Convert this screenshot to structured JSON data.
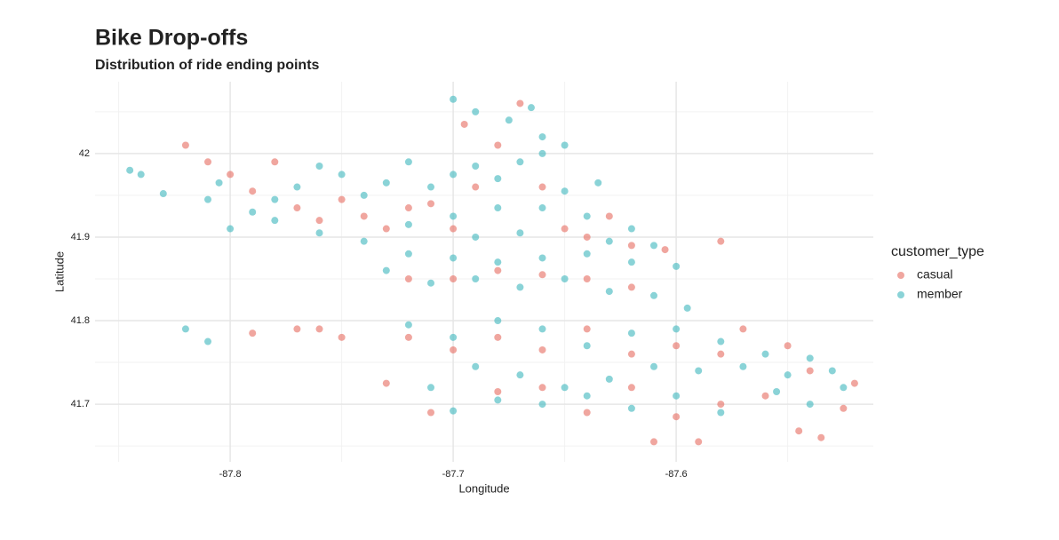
{
  "chart_data": {
    "type": "scatter",
    "title": "Bike Drop-offs",
    "subtitle": "Distribution of ride ending points",
    "x_label": "Longitude",
    "y_label": "Latitude",
    "legend_title": "customer_type",
    "legend_position": "right",
    "grid": true,
    "xlim": [
      -87.8606,
      -87.5116
    ],
    "ylim": [
      41.631,
      42.086
    ],
    "xticks": [
      -87.8,
      -87.7,
      -87.6
    ],
    "yticks": [
      41.7,
      41.8,
      41.9,
      42.0
    ],
    "xminor": [
      -87.85,
      -87.75,
      -87.65,
      -87.55
    ],
    "yminor": [
      41.65,
      41.75,
      41.85,
      41.95,
      42.05
    ],
    "series": [
      {
        "name": "casual",
        "color": "#e8766c",
        "x": [
          -87.82,
          -87.81,
          -87.8,
          -87.79,
          -87.78,
          -87.77,
          -87.76,
          -87.75,
          -87.74,
          -87.73,
          -87.72,
          -87.71,
          -87.7,
          -87.69,
          -87.68,
          -87.67,
          -87.695,
          -87.66,
          -87.65,
          -87.64,
          -87.63,
          -87.62,
          -87.605,
          -87.58,
          -87.7,
          -87.72,
          -87.68,
          -87.66,
          -87.64,
          -87.62,
          -87.79,
          -87.77,
          -87.75,
          -87.76,
          -87.72,
          -87.7,
          -87.68,
          -87.66,
          -87.64,
          -87.62,
          -87.6,
          -87.58,
          -87.57,
          -87.55,
          -87.54,
          -87.52,
          -87.525,
          -87.545,
          -87.535,
          -87.56,
          -87.58,
          -87.6,
          -87.62,
          -87.64,
          -87.66,
          -87.68,
          -87.71,
          -87.73,
          -87.59,
          -87.61
        ],
        "y": [
          42.01,
          41.99,
          41.975,
          41.955,
          41.99,
          41.935,
          41.92,
          41.945,
          41.925,
          41.91,
          41.935,
          41.94,
          41.91,
          41.96,
          42.01,
          42.06,
          42.035,
          41.96,
          41.91,
          41.9,
          41.925,
          41.89,
          41.885,
          41.895,
          41.85,
          41.85,
          41.86,
          41.855,
          41.85,
          41.84,
          41.785,
          41.79,
          41.78,
          41.79,
          41.78,
          41.765,
          41.78,
          41.765,
          41.79,
          41.76,
          41.77,
          41.76,
          41.79,
          41.77,
          41.74,
          41.725,
          41.695,
          41.668,
          41.66,
          41.71,
          41.7,
          41.685,
          41.72,
          41.69,
          41.72,
          41.715,
          41.69,
          41.725,
          41.655,
          41.655
        ]
      },
      {
        "name": "member",
        "color": "#4bbcc2",
        "x": [
          -87.845,
          -87.84,
          -87.83,
          -87.81,
          -87.805,
          -87.79,
          -87.78,
          -87.77,
          -87.76,
          -87.75,
          -87.74,
          -87.73,
          -87.72,
          -87.71,
          -87.7,
          -87.69,
          -87.68,
          -87.67,
          -87.66,
          -87.65,
          -87.66,
          -87.675,
          -87.69,
          -87.7,
          -87.665,
          -87.8,
          -87.78,
          -87.76,
          -87.74,
          -87.72,
          -87.7,
          -87.69,
          -87.68,
          -87.67,
          -87.66,
          -87.65,
          -87.64,
          -87.635,
          -87.63,
          -87.62,
          -87.61,
          -87.6,
          -87.62,
          -87.64,
          -87.66,
          -87.68,
          -87.7,
          -87.72,
          -87.73,
          -87.71,
          -87.69,
          -87.67,
          -87.65,
          -87.63,
          -87.61,
          -87.595,
          -87.82,
          -87.81,
          -87.72,
          -87.7,
          -87.68,
          -87.66,
          -87.64,
          -87.62,
          -87.6,
          -87.58,
          -87.56,
          -87.54,
          -87.55,
          -87.57,
          -87.59,
          -87.61,
          -87.63,
          -87.65,
          -87.67,
          -87.69,
          -87.71,
          -87.7,
          -87.68,
          -87.66,
          -87.64,
          -87.62,
          -87.6,
          -87.58,
          -87.555,
          -87.54,
          -87.525,
          -87.53
        ],
        "y": [
          41.98,
          41.975,
          41.952,
          41.945,
          41.965,
          41.93,
          41.945,
          41.96,
          41.985,
          41.975,
          41.95,
          41.965,
          41.99,
          41.96,
          41.975,
          41.985,
          41.97,
          41.99,
          42.0,
          42.01,
          42.02,
          42.04,
          42.05,
          42.065,
          42.055,
          41.91,
          41.92,
          41.905,
          41.895,
          41.915,
          41.925,
          41.9,
          41.935,
          41.905,
          41.935,
          41.955,
          41.925,
          41.965,
          41.895,
          41.91,
          41.89,
          41.865,
          41.87,
          41.88,
          41.875,
          41.87,
          41.875,
          41.88,
          41.86,
          41.845,
          41.85,
          41.84,
          41.85,
          41.835,
          41.83,
          41.815,
          41.79,
          41.775,
          41.795,
          41.78,
          41.8,
          41.79,
          41.77,
          41.785,
          41.79,
          41.775,
          41.76,
          41.755,
          41.735,
          41.745,
          41.74,
          41.745,
          41.73,
          41.72,
          41.735,
          41.745,
          41.72,
          41.692,
          41.705,
          41.7,
          41.71,
          41.695,
          41.71,
          41.69,
          41.715,
          41.7,
          41.72,
          41.74
        ]
      }
    ]
  }
}
